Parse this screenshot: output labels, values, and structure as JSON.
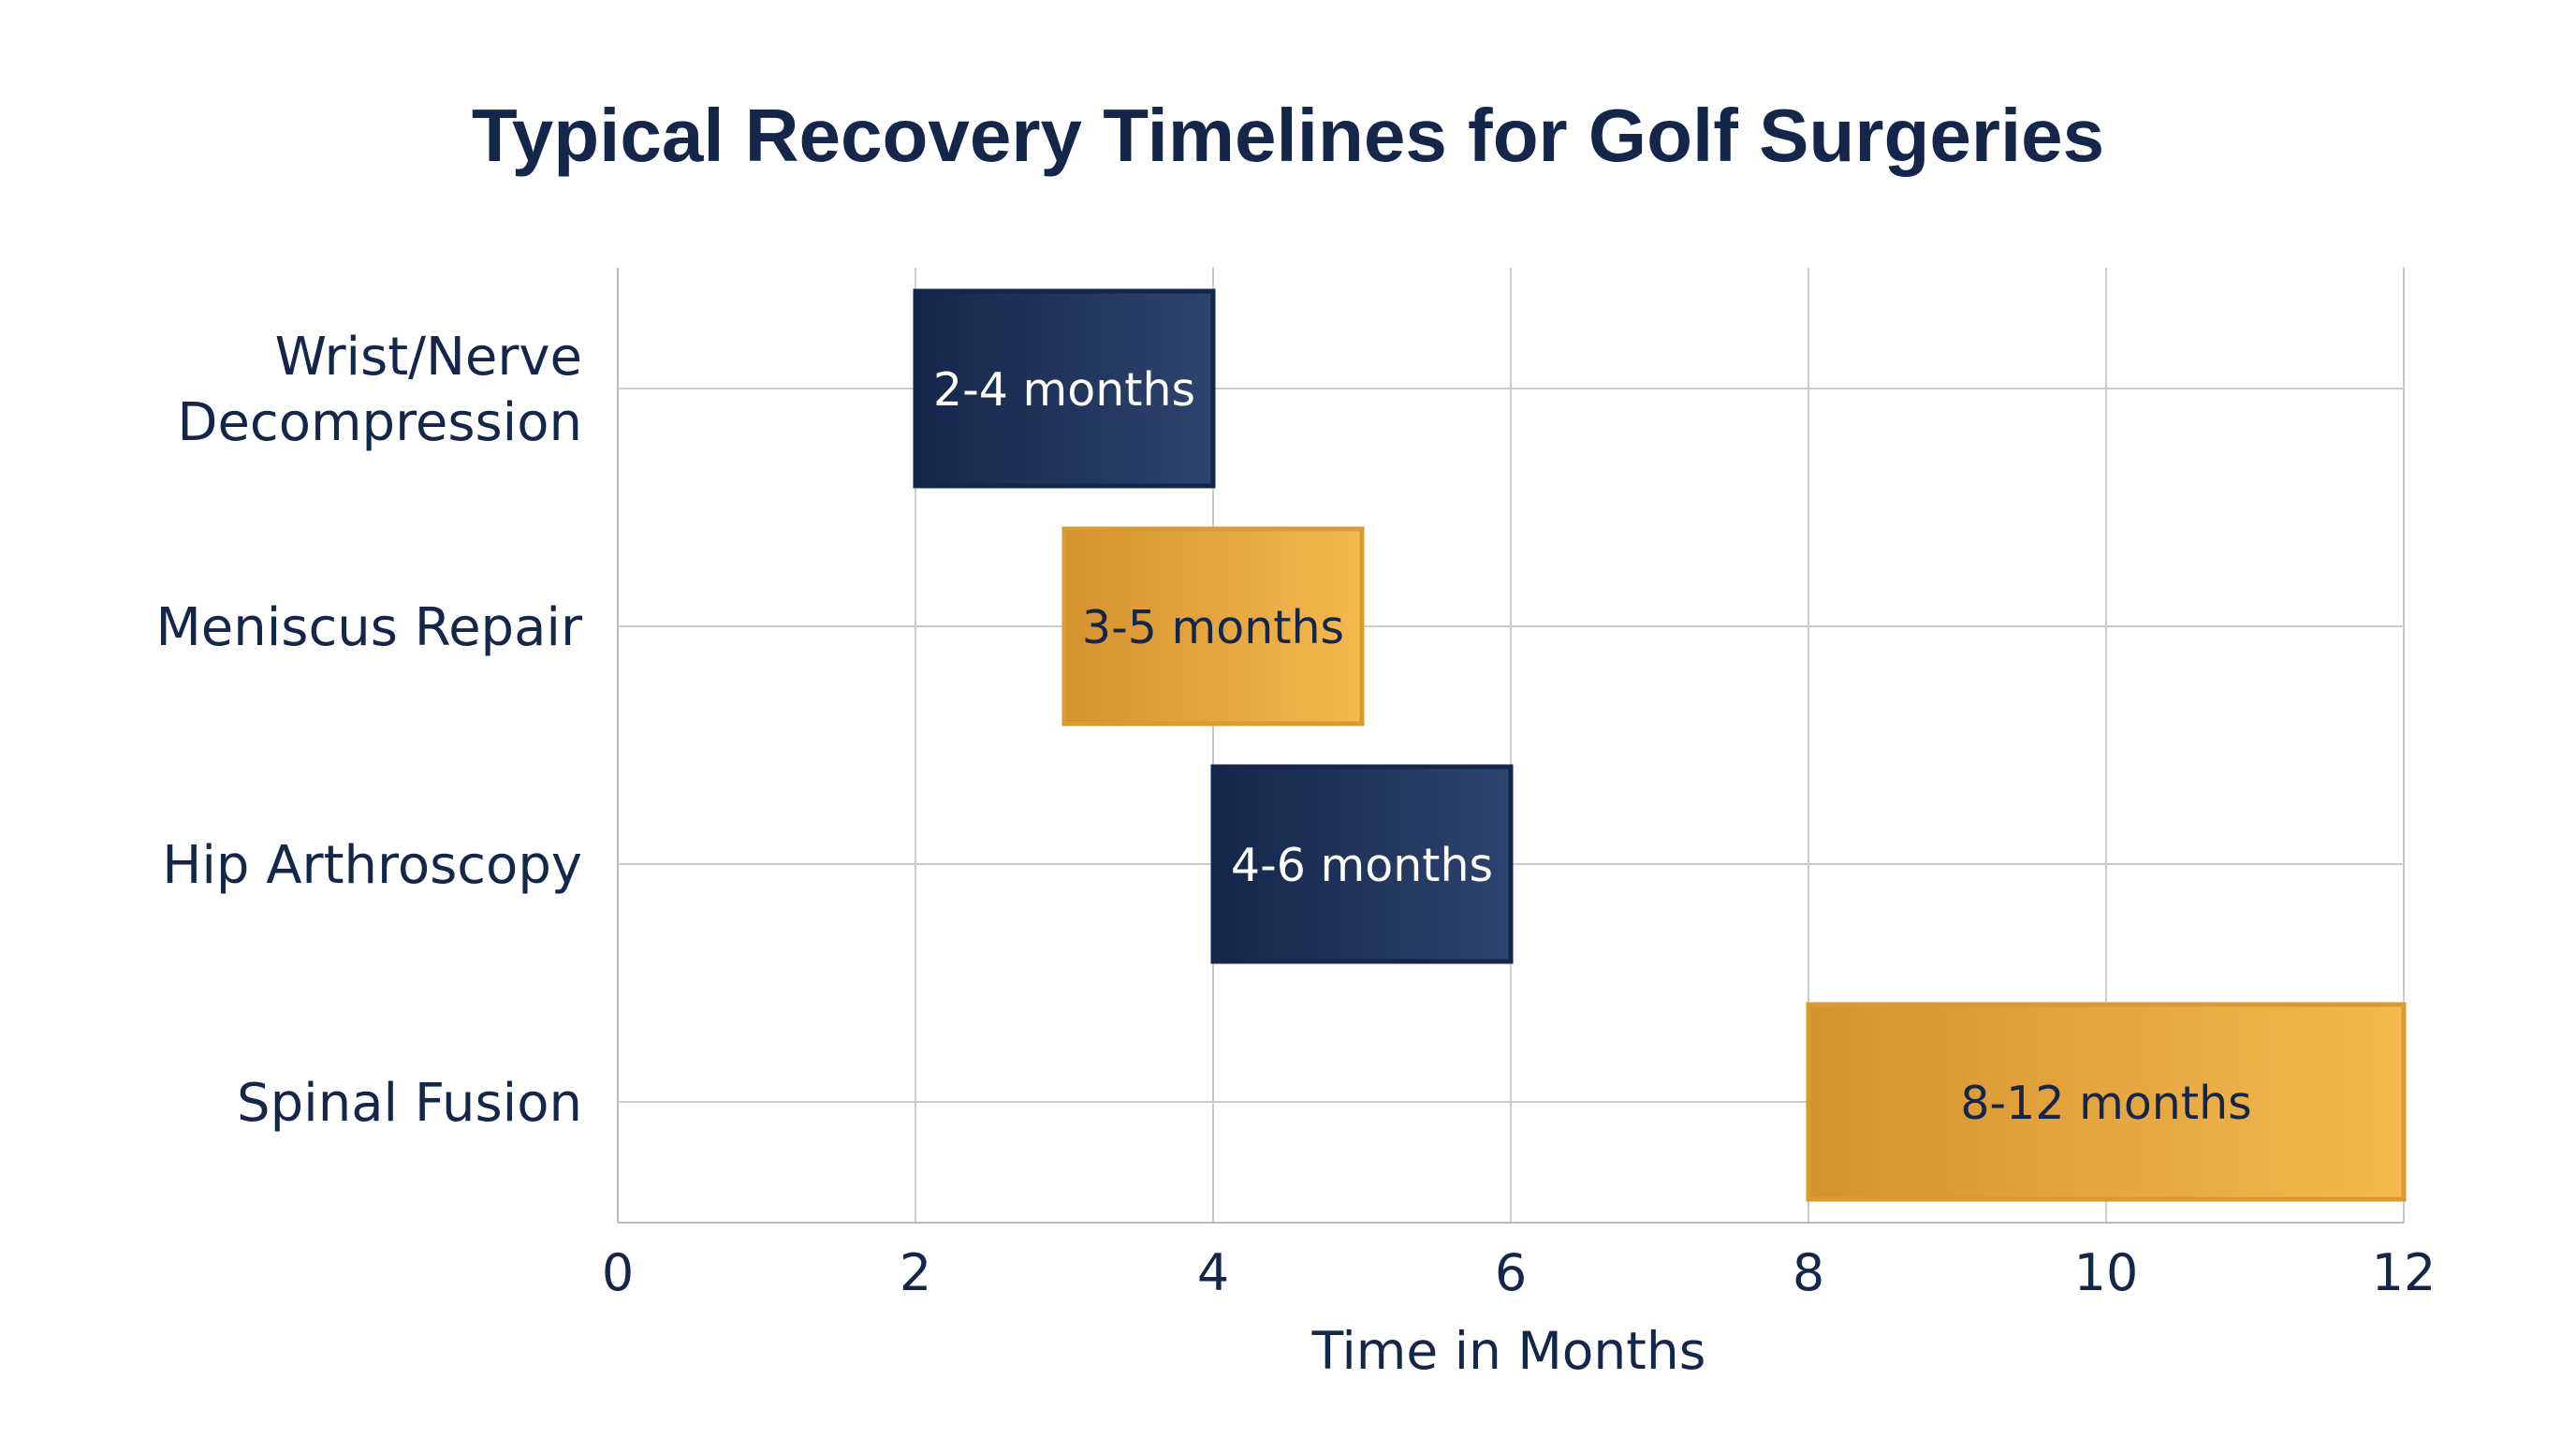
{
  "chart_data": {
    "type": "bar",
    "orientation": "horizontal-range",
    "title": "Typical Recovery Timelines for Golf Surgeries",
    "xlabel": "Time in Months",
    "ylabel": "",
    "xlim": [
      0,
      12
    ],
    "xticks": [
      "0",
      "2",
      "4",
      "6",
      "8",
      "10",
      "12"
    ],
    "grid": true,
    "categories": [
      "Wrist/Nerve Decompression",
      "Meniscus Repair",
      "Hip Arthroscopy",
      "Spinal Fusion"
    ],
    "category_lines": [
      [
        "Wrist/Nerve",
        "Decompression"
      ],
      [
        "Meniscus Repair"
      ],
      [
        "Hip Arthroscopy"
      ],
      [
        "Spinal Fusion"
      ]
    ],
    "ranges": [
      {
        "start": 2,
        "end": 4,
        "label": "2-4 months",
        "color": "navy"
      },
      {
        "start": 3,
        "end": 5,
        "label": "3-5 months",
        "color": "gold"
      },
      {
        "start": 4,
        "end": 6,
        "label": "4-6 months",
        "color": "navy"
      },
      {
        "start": 8,
        "end": 12,
        "label": "8-12 months",
        "color": "gold"
      }
    ],
    "colors": {
      "navy_dark": "#14264a",
      "navy_light": "#2d4470",
      "gold_dark": "#d4922e",
      "gold_light": "#f5b94f",
      "gold_border": "#d99a30",
      "text_dark": "#14264a",
      "grid": "#cccccc"
    }
  }
}
